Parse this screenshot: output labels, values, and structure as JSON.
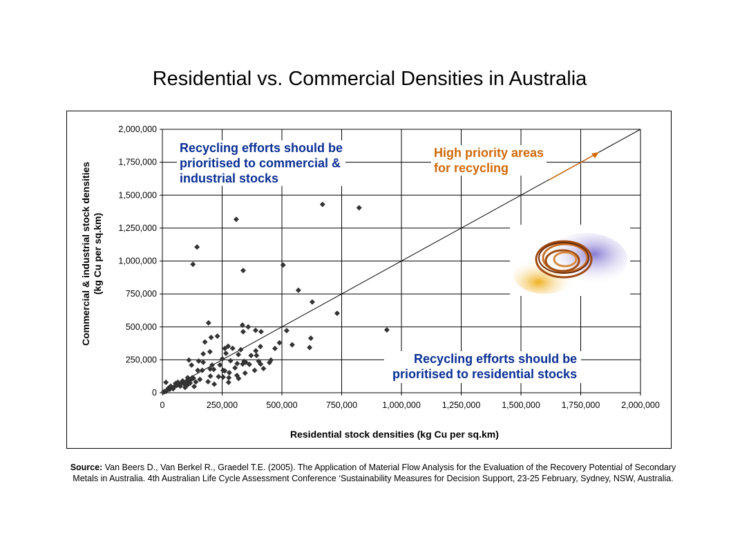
{
  "title": "Residential vs. Commercial Densities in Australia",
  "chart_data": {
    "type": "scatter",
    "title": "Residential vs. Commercial Densities in Australia",
    "xlabel": "Residential stock densities (kg Cu per sq.km)",
    "ylabel_lines": [
      "Commercial & industrial stock densities",
      "(kg Cu per sq.km)"
    ],
    "xlim": [
      0,
      2000000
    ],
    "ylim": [
      0,
      2000000
    ],
    "xticks": [
      "0",
      "250,000",
      "500,000",
      "750,000",
      "1,000,000",
      "1,250,000",
      "1,500,000",
      "1,750,000",
      "2,000,000"
    ],
    "yticks": [
      "0",
      "250,000",
      "500,000",
      "750,000",
      "1,000,000",
      "1,250,000",
      "1,500,000",
      "1,750,000",
      "2,000,000"
    ],
    "grid": true,
    "reference_line": {
      "from": [
        0,
        0
      ],
      "to": [
        2000000,
        2000000
      ]
    },
    "points": [
      [
        670000,
        1430000
      ],
      [
        823000,
        1404000
      ],
      [
        309000,
        1316000
      ],
      [
        145000,
        1106000
      ],
      [
        128000,
        975000
      ],
      [
        338000,
        928000
      ],
      [
        505000,
        970000
      ],
      [
        569000,
        778000
      ],
      [
        627000,
        689000
      ],
      [
        731000,
        603000
      ],
      [
        939000,
        477000
      ],
      [
        193000,
        530000
      ],
      [
        335000,
        514000
      ],
      [
        359000,
        500000
      ],
      [
        338000,
        463000
      ],
      [
        390000,
        474000
      ],
      [
        413000,
        463000
      ],
      [
        520000,
        472000
      ],
      [
        204000,
        420000
      ],
      [
        230000,
        430000
      ],
      [
        178000,
        385000
      ],
      [
        621000,
        414000
      ],
      [
        490000,
        379000
      ],
      [
        543000,
        364000
      ],
      [
        616000,
        343000
      ],
      [
        471000,
        336000
      ],
      [
        410000,
        351000
      ],
      [
        391000,
        318000
      ],
      [
        371000,
        283000
      ],
      [
        394000,
        283000
      ],
      [
        275000,
        353000
      ],
      [
        261000,
        336000
      ],
      [
        294000,
        337000
      ],
      [
        328000,
        327000
      ],
      [
        266000,
        299000
      ],
      [
        318000,
        290000
      ],
      [
        171000,
        295000
      ],
      [
        199000,
        311000
      ],
      [
        251000,
        257000
      ],
      [
        111000,
        248000
      ],
      [
        152000,
        241000
      ],
      [
        171000,
        231000
      ],
      [
        122000,
        210000
      ],
      [
        208000,
        210000
      ],
      [
        241000,
        211000
      ],
      [
        285000,
        243000
      ],
      [
        313000,
        222000
      ],
      [
        342000,
        239000
      ],
      [
        336000,
        218000
      ],
      [
        349000,
        231000
      ],
      [
        364000,
        215000
      ],
      [
        403000,
        239000
      ],
      [
        411000,
        217000
      ],
      [
        423000,
        184000
      ],
      [
        448000,
        229000
      ],
      [
        454000,
        248000
      ],
      [
        304000,
        189000
      ],
      [
        346000,
        149000
      ],
      [
        386000,
        170000
      ],
      [
        254000,
        170000
      ],
      [
        261000,
        166000
      ],
      [
        280000,
        152000
      ],
      [
        235000,
        122000
      ],
      [
        254000,
        119000
      ],
      [
        278000,
        114000
      ],
      [
        312000,
        131000
      ],
      [
        319000,
        108000
      ],
      [
        277000,
        79000
      ],
      [
        201000,
        126000
      ],
      [
        191000,
        84000
      ],
      [
        217000,
        65000
      ],
      [
        200000,
        180000
      ],
      [
        215000,
        177000
      ],
      [
        148000,
        170000
      ],
      [
        167000,
        170000
      ],
      [
        157000,
        101000
      ],
      [
        140000,
        82000
      ],
      [
        133000,
        47000
      ],
      [
        125000,
        114000
      ],
      [
        106000,
        114000
      ],
      [
        95000,
        61000
      ],
      [
        116000,
        73000
      ],
      [
        15000,
        79000
      ],
      [
        10000,
        10000
      ],
      [
        20000,
        20000
      ],
      [
        30000,
        25000
      ],
      [
        40000,
        40000
      ],
      [
        50000,
        45000
      ],
      [
        60000,
        55000
      ],
      [
        70000,
        60000
      ],
      [
        80000,
        75000
      ],
      [
        90000,
        70000
      ],
      [
        100000,
        85000
      ],
      [
        55000,
        70000
      ],
      [
        65000,
        80000
      ],
      [
        35000,
        50000
      ],
      [
        25000,
        35000
      ],
      [
        5000,
        5000
      ],
      [
        15000,
        10000
      ],
      [
        45000,
        30000
      ],
      [
        75000,
        50000
      ],
      [
        85000,
        90000
      ],
      [
        110000,
        95000
      ],
      [
        120000,
        100000
      ],
      [
        130000,
        110000
      ],
      [
        105000,
        60000
      ],
      [
        95000,
        40000
      ]
    ],
    "annotations": {
      "top_left": [
        "Recycling efforts should be",
        "prioritised to commercial &",
        "industrial stocks"
      ],
      "top_right": [
        "High priority areas",
        "for recycling"
      ],
      "bottom_right": [
        "Recycling efforts should be",
        "prioritised to residential stocks"
      ]
    },
    "colors": {
      "points": "#333333",
      "blue": "#0a2f94",
      "orange": "#d06a0a"
    }
  },
  "source": {
    "label": "Source:",
    "text": " Van Beers D., Van Berkel R., Graedel T.E. (2005). The Application of Material Flow Analysis for the Evaluation of the Recovery Potential of Secondary Metals in Australia. 4th Australian Life Cycle Assessment Conference ‘Sustainability Measures for Decision Support, 23-25 February, Sydney, NSW, Australia."
  }
}
